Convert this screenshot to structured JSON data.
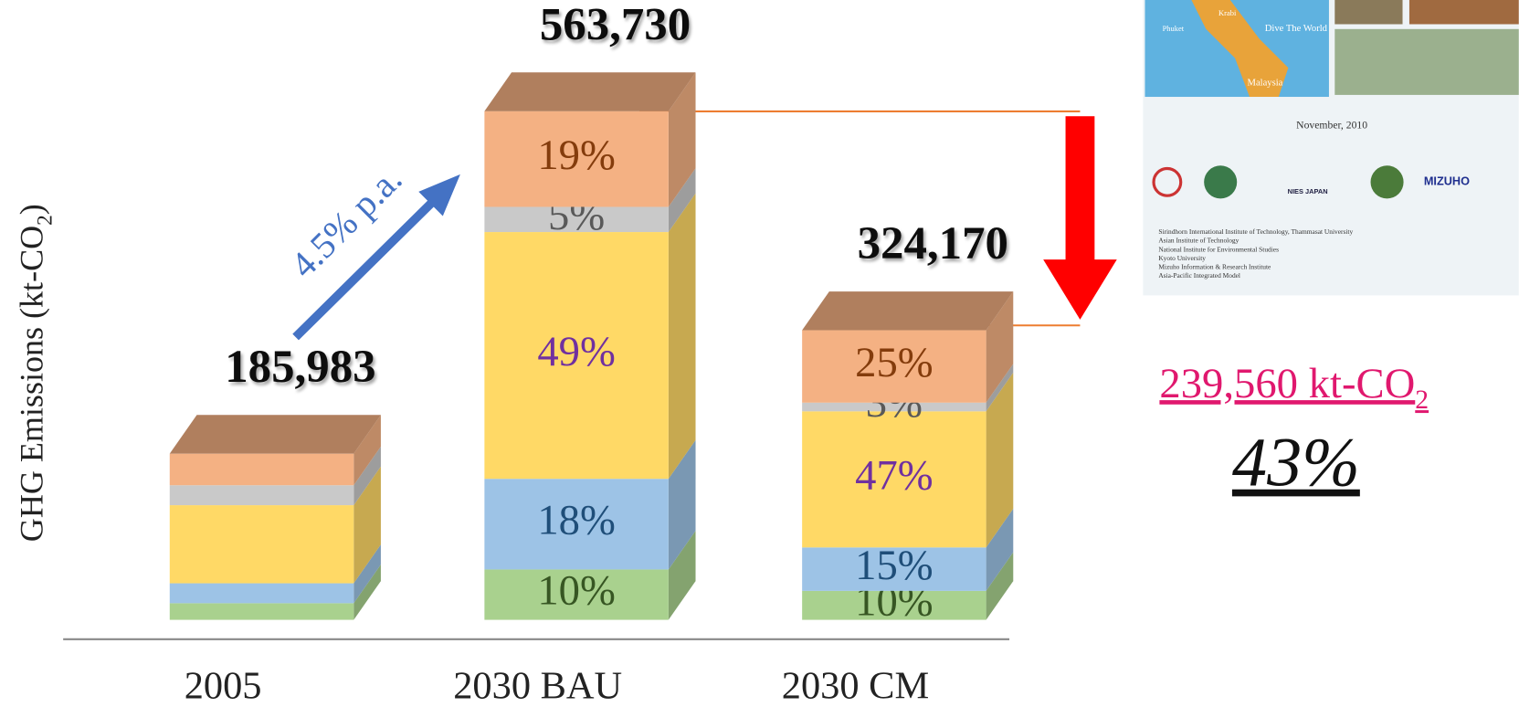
{
  "chart_data": {
    "type": "stacked_bar_3d",
    "y_label": [
      "GHG Emissions (kt-CO",
      "2",
      ")"
    ],
    "categories": [
      "2005",
      "2030 BAU",
      "2030 CM"
    ],
    "totals": {
      "values": [
        185983,
        563730,
        324170
      ],
      "value_labels": [
        "185,983",
        "563,730",
        "324,170"
      ]
    },
    "series": [
      {
        "color": "#a9d18e",
        "label_color": "#375623",
        "values": [
          10,
          10,
          10
        ],
        "value_labels": [
          null,
          "10%",
          "10%"
        ]
      },
      {
        "color": "#9dc3e6",
        "label_color": "#1f4e79",
        "values": [
          12,
          18,
          15
        ],
        "value_labels": [
          null,
          "18%",
          "15%"
        ]
      },
      {
        "color": "#ffd966",
        "label_color": "#7030a0",
        "values": [
          47,
          49,
          47
        ],
        "value_labels": [
          null,
          "49%",
          "47%"
        ]
      },
      {
        "color": "#c9c9c9",
        "label_color": "#595959",
        "values": [
          12,
          5,
          3
        ],
        "value_labels": [
          null,
          "5%",
          "3%"
        ]
      },
      {
        "color": "#f4b183",
        "label_color": "#843c0c",
        "values": [
          19,
          19,
          25
        ],
        "value_labels": [
          null,
          "19%",
          "25%"
        ]
      }
    ],
    "growth_annotation": "4.5% p.a.",
    "reduction": [
      "239,560 kt-CO",
      "2"
    ],
    "reduction_share": "43%"
  },
  "report_cover": {
    "map_labels": [
      "Dive The World",
      "Malaysia",
      "Krabi",
      "Phuket"
    ],
    "date": "November, 2010",
    "logos": [
      "NIES JAPAN",
      "MIZUHO"
    ],
    "institutions": [
      "Sirindhorn International Institute of Technology, Thammasat University",
      "Asian Institute of Technology",
      "National Institute for Environmental Studies",
      "Kyoto University",
      "Mizuho Information & Research Institute",
      "Asia-Pacific Integrated Model"
    ]
  }
}
